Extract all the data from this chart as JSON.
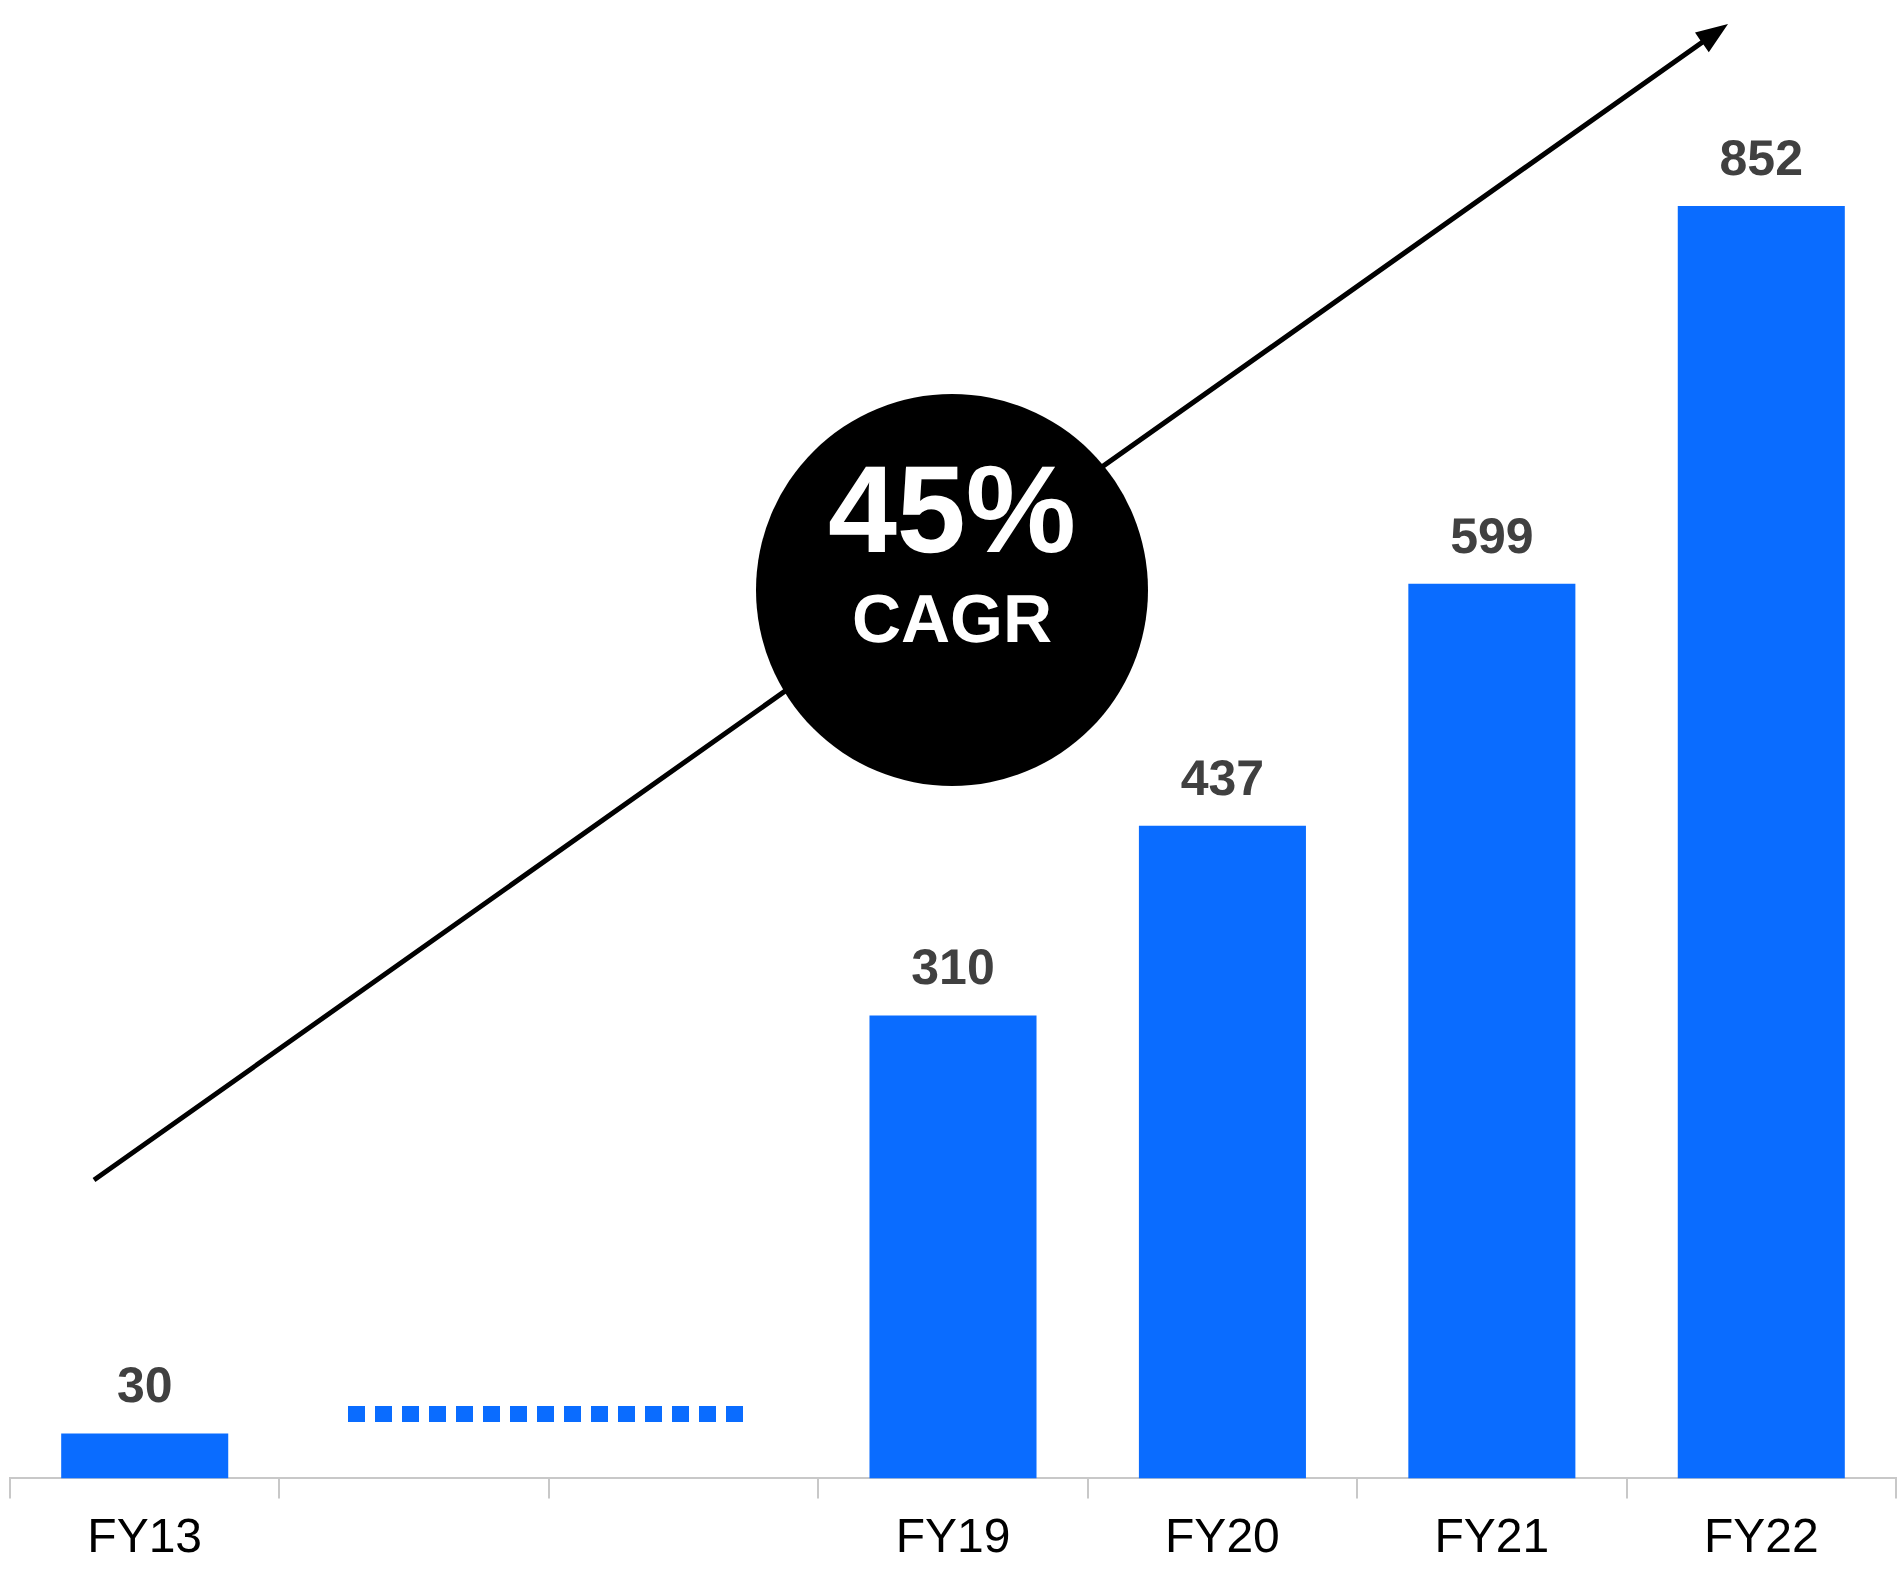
{
  "chart_data": {
    "type": "bar",
    "categories": [
      "FY13",
      null,
      null,
      "FY19",
      "FY20",
      "FY21",
      "FY22"
    ],
    "values": [
      30,
      null,
      null,
      310,
      437,
      599,
      852
    ],
    "color": "#0a6cff",
    "data_labels": true,
    "legend": false,
    "annotations": [
      "45%",
      "CAGR"
    ]
  }
}
